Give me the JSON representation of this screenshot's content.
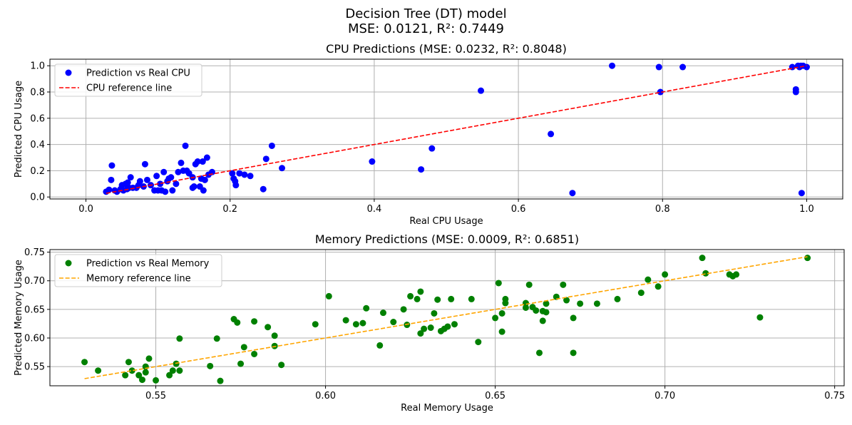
{
  "figure": {
    "title": "Decision Tree (DT) model",
    "subtitle": "MSE: 0.0121, R²: 0.7449"
  },
  "chart_data": [
    {
      "type": "scatter",
      "title": "CPU Predictions (MSE: 0.0232, R²: 0.8048)",
      "xlabel": "Real CPU Usage",
      "ylabel": "Predicted CPU Usage",
      "xlim": [
        -0.05,
        1.05
      ],
      "ylim": [
        -0.015,
        1.05
      ],
      "xticks": [
        "0.0",
        "0.2",
        "0.4",
        "0.6",
        "0.8",
        "1.0"
      ],
      "yticks": [
        "0.0",
        "0.2",
        "0.4",
        "0.6",
        "0.8",
        "1.0"
      ],
      "grid": true,
      "legend_position": "upper-left",
      "series": [
        {
          "name": "Prediction vs Real CPU",
          "kind": "scatter",
          "color": "#0000ff",
          "points": [
            [
              0.028,
              0.04
            ],
            [
              0.032,
              0.055
            ],
            [
              0.035,
              0.13
            ],
            [
              0.036,
              0.24
            ],
            [
              0.04,
              0.05
            ],
            [
              0.043,
              0.04
            ],
            [
              0.048,
              0.06
            ],
            [
              0.05,
              0.09
            ],
            [
              0.052,
              0.05
            ],
            [
              0.055,
              0.1
            ],
            [
              0.057,
              0.06
            ],
            [
              0.058,
              0.11
            ],
            [
              0.06,
              0.07
            ],
            [
              0.062,
              0.15
            ],
            [
              0.065,
              0.07
            ],
            [
              0.07,
              0.07
            ],
            [
              0.073,
              0.09
            ],
            [
              0.075,
              0.12
            ],
            [
              0.08,
              0.08
            ],
            [
              0.082,
              0.25
            ],
            [
              0.085,
              0.13
            ],
            [
              0.09,
              0.09
            ],
            [
              0.095,
              0.05
            ],
            [
              0.098,
              0.16
            ],
            [
              0.1,
              0.05
            ],
            [
              0.103,
              0.1
            ],
            [
              0.105,
              0.05
            ],
            [
              0.108,
              0.19
            ],
            [
              0.11,
              0.04
            ],
            [
              0.113,
              0.12
            ],
            [
              0.115,
              0.14
            ],
            [
              0.118,
              0.15
            ],
            [
              0.12,
              0.05
            ],
            [
              0.125,
              0.1
            ],
            [
              0.128,
              0.19
            ],
            [
              0.132,
              0.26
            ],
            [
              0.135,
              0.2
            ],
            [
              0.138,
              0.39
            ],
            [
              0.14,
              0.2
            ],
            [
              0.143,
              0.18
            ],
            [
              0.148,
              0.07
            ],
            [
              0.148,
              0.15
            ],
            [
              0.15,
              0.08
            ],
            [
              0.152,
              0.25
            ],
            [
              0.155,
              0.27
            ],
            [
              0.158,
              0.08
            ],
            [
              0.16,
              0.14
            ],
            [
              0.162,
              0.27
            ],
            [
              0.163,
              0.05
            ],
            [
              0.165,
              0.13
            ],
            [
              0.168,
              0.3
            ],
            [
              0.17,
              0.17
            ],
            [
              0.175,
              0.19
            ],
            [
              0.203,
              0.18
            ],
            [
              0.205,
              0.14
            ],
            [
              0.207,
              0.12
            ],
            [
              0.208,
              0.09
            ],
            [
              0.213,
              0.18
            ],
            [
              0.22,
              0.17
            ],
            [
              0.228,
              0.16
            ],
            [
              0.246,
              0.06
            ],
            [
              0.25,
              0.29
            ],
            [
              0.258,
              0.39
            ],
            [
              0.272,
              0.22
            ],
            [
              0.397,
              0.27
            ],
            [
              0.465,
              0.21
            ],
            [
              0.48,
              0.37
            ],
            [
              0.548,
              0.81
            ],
            [
              0.645,
              0.48
            ],
            [
              0.675,
              0.03
            ],
            [
              0.73,
              1.0
            ],
            [
              0.795,
              0.99
            ],
            [
              0.797,
              0.8
            ],
            [
              0.828,
              0.99
            ],
            [
              0.98,
              0.99
            ],
            [
              0.985,
              0.8
            ],
            [
              0.985,
              0.82
            ],
            [
              0.988,
              1.0
            ],
            [
              0.99,
              0.99
            ],
            [
              0.992,
              1.0
            ],
            [
              0.993,
              0.03
            ],
            [
              0.995,
              1.0
            ],
            [
              1.0,
              0.99
            ]
          ]
        },
        {
          "name": "CPU reference line",
          "kind": "line",
          "color": "#ff0000",
          "dashed": true,
          "points": [
            [
              0.028,
              0.028
            ],
            [
              1.0,
              1.0
            ]
          ]
        }
      ]
    },
    {
      "type": "scatter",
      "title": "Memory Predictions (MSE: 0.0009, R²: 0.6851)",
      "xlabel": "Real Memory Usage",
      "ylabel": "Predicted Memory Usage",
      "xlim": [
        0.5188,
        0.7528
      ],
      "ylim": [
        0.5165,
        0.7545
      ],
      "xticks": [
        "0.55",
        "0.60",
        "0.65",
        "0.70",
        "0.75"
      ],
      "yticks": [
        "0.55",
        "0.60",
        "0.65",
        "0.70",
        "0.75"
      ],
      "grid": true,
      "legend_position": "upper-left",
      "series": [
        {
          "name": "Prediction vs Real Memory",
          "kind": "scatter",
          "color": "#008000",
          "points": [
            [
              0.529,
              0.558
            ],
            [
              0.533,
              0.543
            ],
            [
              0.541,
              0.535
            ],
            [
              0.542,
              0.558
            ],
            [
              0.543,
              0.543
            ],
            [
              0.545,
              0.535
            ],
            [
              0.546,
              0.527
            ],
            [
              0.547,
              0.55
            ],
            [
              0.547,
              0.54
            ],
            [
              0.548,
              0.564
            ],
            [
              0.55,
              0.526
            ],
            [
              0.554,
              0.535
            ],
            [
              0.555,
              0.543
            ],
            [
              0.556,
              0.555
            ],
            [
              0.557,
              0.599
            ],
            [
              0.557,
              0.543
            ],
            [
              0.566,
              0.551
            ],
            [
              0.568,
              0.599
            ],
            [
              0.569,
              0.525
            ],
            [
              0.573,
              0.633
            ],
            [
              0.574,
              0.627
            ],
            [
              0.575,
              0.555
            ],
            [
              0.576,
              0.584
            ],
            [
              0.579,
              0.629
            ],
            [
              0.579,
              0.572
            ],
            [
              0.583,
              0.619
            ],
            [
              0.585,
              0.604
            ],
            [
              0.585,
              0.586
            ],
            [
              0.587,
              0.553
            ],
            [
              0.597,
              0.624
            ],
            [
              0.601,
              0.673
            ],
            [
              0.606,
              0.631
            ],
            [
              0.609,
              0.624
            ],
            [
              0.611,
              0.626
            ],
            [
              0.612,
              0.652
            ],
            [
              0.616,
              0.587
            ],
            [
              0.617,
              0.644
            ],
            [
              0.62,
              0.628
            ],
            [
              0.623,
              0.65
            ],
            [
              0.624,
              0.623
            ],
            [
              0.625,
              0.673
            ],
            [
              0.627,
              0.668
            ],
            [
              0.628,
              0.681
            ],
            [
              0.628,
              0.608
            ],
            [
              0.629,
              0.616
            ],
            [
              0.631,
              0.618
            ],
            [
              0.632,
              0.643
            ],
            [
              0.633,
              0.667
            ],
            [
              0.634,
              0.612
            ],
            [
              0.635,
              0.616
            ],
            [
              0.636,
              0.62
            ],
            [
              0.637,
              0.668
            ],
            [
              0.638,
              0.624
            ],
            [
              0.643,
              0.668
            ],
            [
              0.645,
              0.593
            ],
            [
              0.65,
              0.635
            ],
            [
              0.651,
              0.696
            ],
            [
              0.652,
              0.611
            ],
            [
              0.652,
              0.643
            ],
            [
              0.653,
              0.668
            ],
            [
              0.653,
              0.661
            ],
            [
              0.659,
              0.653
            ],
            [
              0.659,
              0.661
            ],
            [
              0.66,
              0.693
            ],
            [
              0.661,
              0.654
            ],
            [
              0.662,
              0.648
            ],
            [
              0.663,
              0.574
            ],
            [
              0.664,
              0.63
            ],
            [
              0.664,
              0.647
            ],
            [
              0.665,
              0.66
            ],
            [
              0.665,
              0.645
            ],
            [
              0.668,
              0.672
            ],
            [
              0.67,
              0.693
            ],
            [
              0.671,
              0.666
            ],
            [
              0.673,
              0.635
            ],
            [
              0.673,
              0.574
            ],
            [
              0.675,
              0.66
            ],
            [
              0.68,
              0.66
            ],
            [
              0.686,
              0.668
            ],
            [
              0.693,
              0.679
            ],
            [
              0.695,
              0.702
            ],
            [
              0.698,
              0.69
            ],
            [
              0.7,
              0.711
            ],
            [
              0.711,
              0.74
            ],
            [
              0.712,
              0.713
            ],
            [
              0.719,
              0.711
            ],
            [
              0.72,
              0.708
            ],
            [
              0.721,
              0.711
            ],
            [
              0.728,
              0.636
            ],
            [
              0.742,
              0.74
            ]
          ]
        },
        {
          "name": "Memory reference line",
          "kind": "line",
          "color": "#ffa500",
          "dashed": true,
          "points": [
            [
              0.529,
              0.529
            ],
            [
              0.742,
              0.742
            ]
          ]
        }
      ]
    }
  ]
}
